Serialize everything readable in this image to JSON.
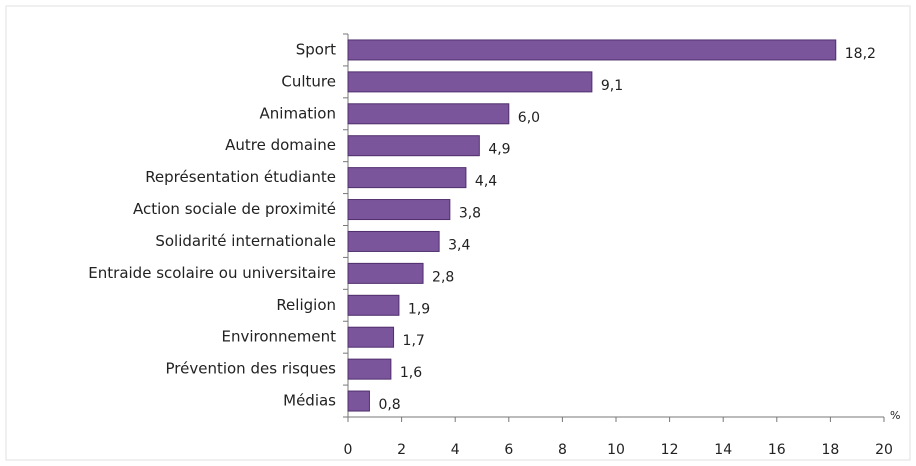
{
  "chart_data": {
    "type": "bar",
    "orientation": "horizontal",
    "categories": [
      "Sport",
      "Culture",
      "Animation",
      "Autre domaine",
      "Représentation étudiante",
      "Action sociale de proximité",
      "Solidarité internationale",
      "Entraide scolaire ou universitaire",
      "Religion",
      "Environnement",
      "Prévention des risques",
      "Médias"
    ],
    "values": [
      18.2,
      9.1,
      6.0,
      4.9,
      4.4,
      3.8,
      3.4,
      2.8,
      1.9,
      1.7,
      1.6,
      0.8
    ],
    "value_labels": [
      "18,2",
      "9,1",
      "6,0",
      "4,9",
      "4,4",
      "3,8",
      "3,4",
      "2,8",
      "1,9",
      "1,7",
      "1,6",
      "0,8"
    ],
    "color": "#7b559b",
    "xlim": [
      0,
      20
    ],
    "xticks": [
      0,
      2,
      4,
      6,
      8,
      10,
      12,
      14,
      16,
      18,
      20
    ],
    "x_axis_label": "%",
    "grid": false
  }
}
